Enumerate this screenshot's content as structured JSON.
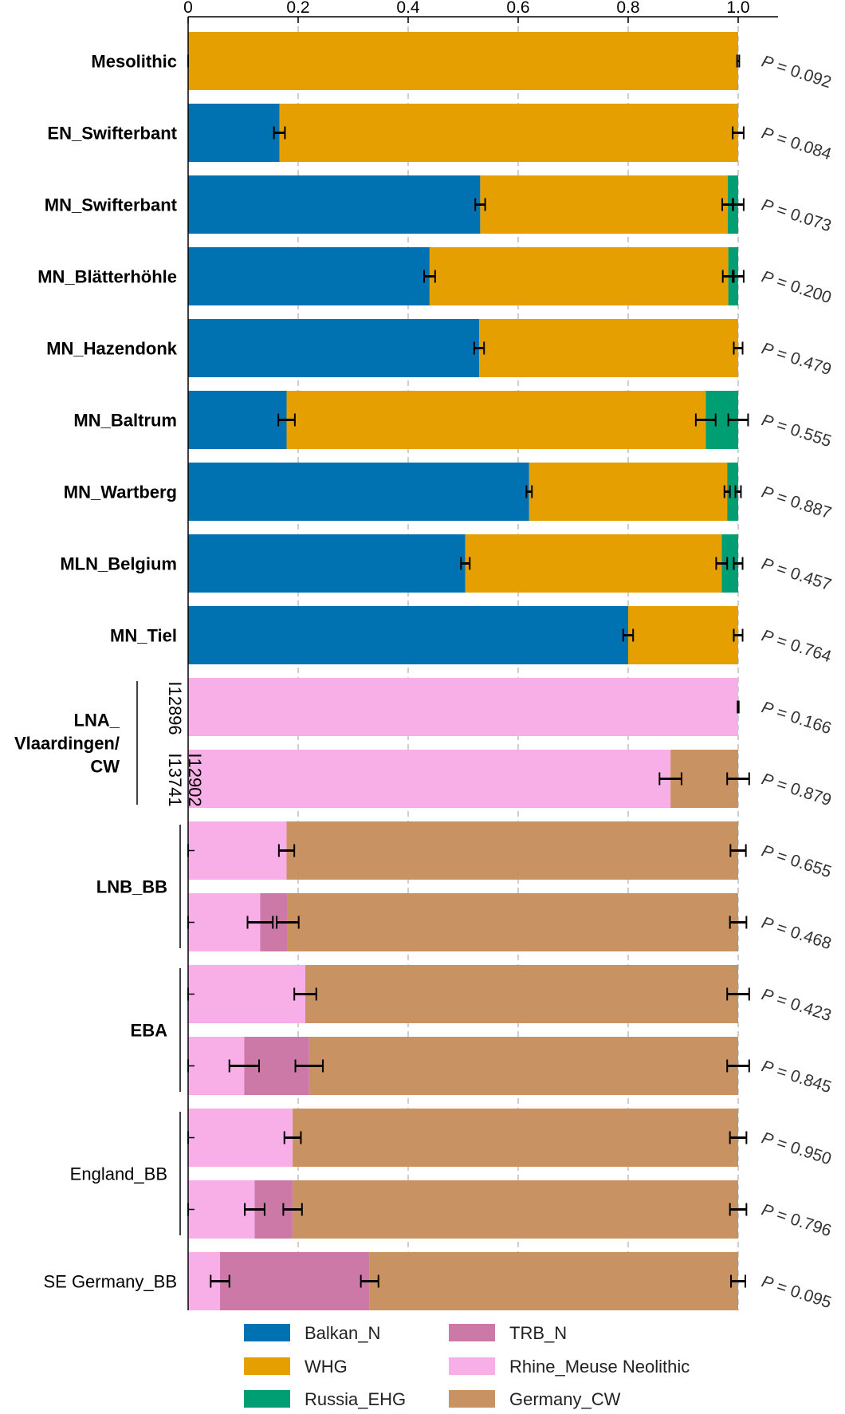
{
  "chart_data": {
    "type": "bar",
    "orientation": "horizontal-stacked",
    "x_ticks": [
      "0",
      "0.2",
      "0.4",
      "0.6",
      "0.8",
      "1.0"
    ],
    "xlim": [
      0,
      1
    ],
    "grid": true,
    "p_prefix": "P",
    "components": [
      {
        "name": "Balkan_N",
        "color": "#0072B2"
      },
      {
        "name": "WHG",
        "color": "#E69F00"
      },
      {
        "name": "Russia_EHG",
        "color": "#009E73"
      },
      {
        "name": "TRB_N",
        "color": "#CC79A7"
      },
      {
        "name": "Rhine_Meuse Neolithic",
        "color": "#F8AEE6"
      },
      {
        "name": "Germany_CW",
        "color": "#C89262"
      }
    ],
    "rows": [
      {
        "label": "Mesolithic",
        "segments": [
          {
            "c": "WHG",
            "v": 1.0
          }
        ],
        "errors": [
          0.0,
          1.0
        ],
        "err_w": [
          0.0,
          0.002
        ],
        "p": "0.092"
      },
      {
        "label": "EN_Swifterbant",
        "segments": [
          {
            "c": "Balkan_N",
            "v": 0.166
          },
          {
            "c": "WHG",
            "v": 0.834
          }
        ],
        "errors": [
          0.166,
          1.0
        ],
        "err_w": [
          0.01,
          0.01
        ],
        "p": "0.084"
      },
      {
        "label": "MN_Swifterbant",
        "segments": [
          {
            "c": "Balkan_N",
            "v": 0.531
          },
          {
            "c": "WHG",
            "v": 0.45
          },
          {
            "c": "Russia_EHG",
            "v": 0.019
          }
        ],
        "errors": [
          0.531,
          0.981,
          1.0
        ],
        "err_w": [
          0.009,
          0.01,
          0.01
        ],
        "p": "0.073"
      },
      {
        "label": "MN_Blätterhöhle",
        "segments": [
          {
            "c": "Balkan_N",
            "v": 0.439
          },
          {
            "c": "WHG",
            "v": 0.543
          },
          {
            "c": "Russia_EHG",
            "v": 0.018
          }
        ],
        "errors": [
          0.439,
          0.982,
          1.0
        ],
        "err_w": [
          0.01,
          0.01,
          0.01
        ],
        "p": "0.200"
      },
      {
        "label": "MN_Hazendonk",
        "segments": [
          {
            "c": "Balkan_N",
            "v": 0.529
          },
          {
            "c": "WHG",
            "v": 0.471
          }
        ],
        "errors": [
          0.529,
          1.0
        ],
        "err_w": [
          0.009,
          0.008
        ],
        "p": "0.479"
      },
      {
        "label": "MN_Baltrum",
        "segments": [
          {
            "c": "Balkan_N",
            "v": 0.179
          },
          {
            "c": "WHG",
            "v": 0.762
          },
          {
            "c": "Russia_EHG",
            "v": 0.059
          }
        ],
        "errors": [
          0.179,
          0.941,
          1.0
        ],
        "err_w": [
          0.015,
          0.018,
          0.018
        ],
        "p": "0.555"
      },
      {
        "label": "MN_Wartberg",
        "segments": [
          {
            "c": "Balkan_N",
            "v": 0.62
          },
          {
            "c": "WHG",
            "v": 0.36
          },
          {
            "c": "Russia_EHG",
            "v": 0.02
          }
        ],
        "errors": [
          0.62,
          0.98,
          1.0
        ],
        "err_w": [
          0.005,
          0.005,
          0.005
        ],
        "p": "0.887"
      },
      {
        "label": "MLN_Belgium",
        "segments": [
          {
            "c": "Balkan_N",
            "v": 0.504
          },
          {
            "c": "WHG",
            "v": 0.466
          },
          {
            "c": "Russia_EHG",
            "v": 0.03
          }
        ],
        "errors": [
          0.504,
          0.97,
          1.0
        ],
        "err_w": [
          0.008,
          0.01,
          0.008
        ],
        "p": "0.457"
      },
      {
        "label": "MN_Tiel",
        "segments": [
          {
            "c": "Balkan_N",
            "v": 0.8
          },
          {
            "c": "WHG",
            "v": 0.2
          }
        ],
        "errors": [
          0.8,
          1.0
        ],
        "err_w": [
          0.009,
          0.008
        ],
        "p": "0.764"
      },
      {
        "label": "I12896",
        "segments": [
          {
            "c": "Rhine_Meuse Neolithic",
            "v": 1.0
          }
        ],
        "errors": [
          1.0
        ],
        "err_w": [
          0.001
        ],
        "p": "0.166"
      },
      {
        "label": "I13741\nI12902",
        "segments": [
          {
            "c": "Rhine_Meuse Neolithic",
            "v": 0.877
          },
          {
            "c": "Germany_CW",
            "v": 0.123
          }
        ],
        "errors": [
          0.877,
          1.0
        ],
        "err_w": [
          0.02,
          0.02
        ],
        "p": "0.879"
      },
      {
        "label": "",
        "segments": [
          {
            "c": "Rhine_Meuse Neolithic",
            "v": 0.179
          },
          {
            "c": "Germany_CW",
            "v": 0.821
          }
        ],
        "errors": [
          0.0,
          0.179,
          1.0
        ],
        "err_w": [
          0.0,
          0.014,
          0.014
        ],
        "p": "0.655"
      },
      {
        "label": "",
        "segments": [
          {
            "c": "Rhine_Meuse Neolithic",
            "v": 0.131
          },
          {
            "c": "TRB_N",
            "v": 0.05
          },
          {
            "c": "Germany_CW",
            "v": 0.819
          }
        ],
        "errors": [
          0.0,
          0.131,
          0.181,
          1.0
        ],
        "err_w": [
          0.0,
          0.023,
          0.02,
          0.015
        ],
        "p": "0.468"
      },
      {
        "label": "",
        "segments": [
          {
            "c": "Rhine_Meuse Neolithic",
            "v": 0.213
          },
          {
            "c": "Germany_CW",
            "v": 0.787
          }
        ],
        "errors": [
          0.0,
          0.213,
          1.0
        ],
        "err_w": [
          0.0,
          0.02,
          0.02
        ],
        "p": "0.423"
      },
      {
        "label": "",
        "segments": [
          {
            "c": "Rhine_Meuse Neolithic",
            "v": 0.102
          },
          {
            "c": "TRB_N",
            "v": 0.118
          },
          {
            "c": "Germany_CW",
            "v": 0.78
          }
        ],
        "errors": [
          0.0,
          0.102,
          0.22,
          1.0
        ],
        "err_w": [
          0.0,
          0.027,
          0.025,
          0.02
        ],
        "p": "0.845"
      },
      {
        "label": "",
        "segments": [
          {
            "c": "Rhine_Meuse Neolithic",
            "v": 0.19
          },
          {
            "c": "Germany_CW",
            "v": 0.81
          }
        ],
        "errors": [
          0.0,
          0.19,
          1.0
        ],
        "err_w": [
          0.0,
          0.015,
          0.015
        ],
        "p": "0.950"
      },
      {
        "label": "",
        "segments": [
          {
            "c": "Rhine_Meuse Neolithic",
            "v": 0.121
          },
          {
            "c": "TRB_N",
            "v": 0.069
          },
          {
            "c": "Germany_CW",
            "v": 0.81
          }
        ],
        "errors": [
          0.0,
          0.121,
          0.19,
          1.0
        ],
        "err_w": [
          0.0,
          0.018,
          0.017,
          0.015
        ],
        "p": "0.796"
      },
      {
        "label": "SE Germany_BB",
        "segments": [
          {
            "c": "Rhine_Meuse Neolithic",
            "v": 0.058
          },
          {
            "c": "TRB_N",
            "v": 0.272
          },
          {
            "c": "Germany_CW",
            "v": 0.67
          }
        ],
        "errors": [
          0.058,
          0.33,
          1.0
        ],
        "err_w": [
          0.017,
          0.016,
          0.013
        ],
        "p": "0.095"
      }
    ],
    "groups": [
      {
        "label_lines": [
          "LNA_",
          "Vlaardingen/",
          "CW"
        ],
        "rows": [
          9,
          10
        ],
        "bold": true
      },
      {
        "label_lines": [
          "LNB_BB"
        ],
        "rows": [
          11,
          12
        ],
        "bold": true
      },
      {
        "label_lines": [
          "EBA"
        ],
        "rows": [
          13,
          14
        ],
        "bold": true
      },
      {
        "label_lines": [
          "England_BB"
        ],
        "rows": [
          15,
          16
        ],
        "bold": false
      }
    ]
  }
}
